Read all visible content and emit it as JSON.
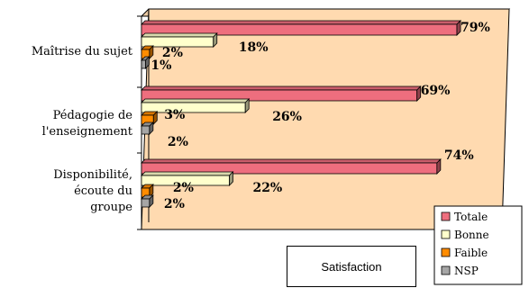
{
  "chart_data": {
    "type": "bar",
    "orientation": "horizontal",
    "categories": [
      [
        "Maîtrise du sujet"
      ],
      [
        "Pédagogie de",
        "l'enseignement"
      ],
      [
        "Disponibilité,",
        "écoute du",
        "groupe"
      ]
    ],
    "series": [
      {
        "name": "Totale",
        "values": [
          79,
          69,
          74
        ],
        "color": "#ee6e7e"
      },
      {
        "name": "Bonne",
        "values": [
          18,
          26,
          22
        ],
        "color": "#ffffcc"
      },
      {
        "name": "Faible",
        "values": [
          2,
          3,
          2
        ],
        "color": "#ff8c00"
      },
      {
        "name": "NSP",
        "values": [
          1,
          2,
          2
        ],
        "color": "#a6a6a6"
      }
    ],
    "value_suffix": "%",
    "xlim": [
      0,
      79
    ],
    "wall_color": "#ffdab0",
    "legend": "bottom-right",
    "grid": false
  },
  "caption_box": {
    "text": "Satisfaction"
  }
}
